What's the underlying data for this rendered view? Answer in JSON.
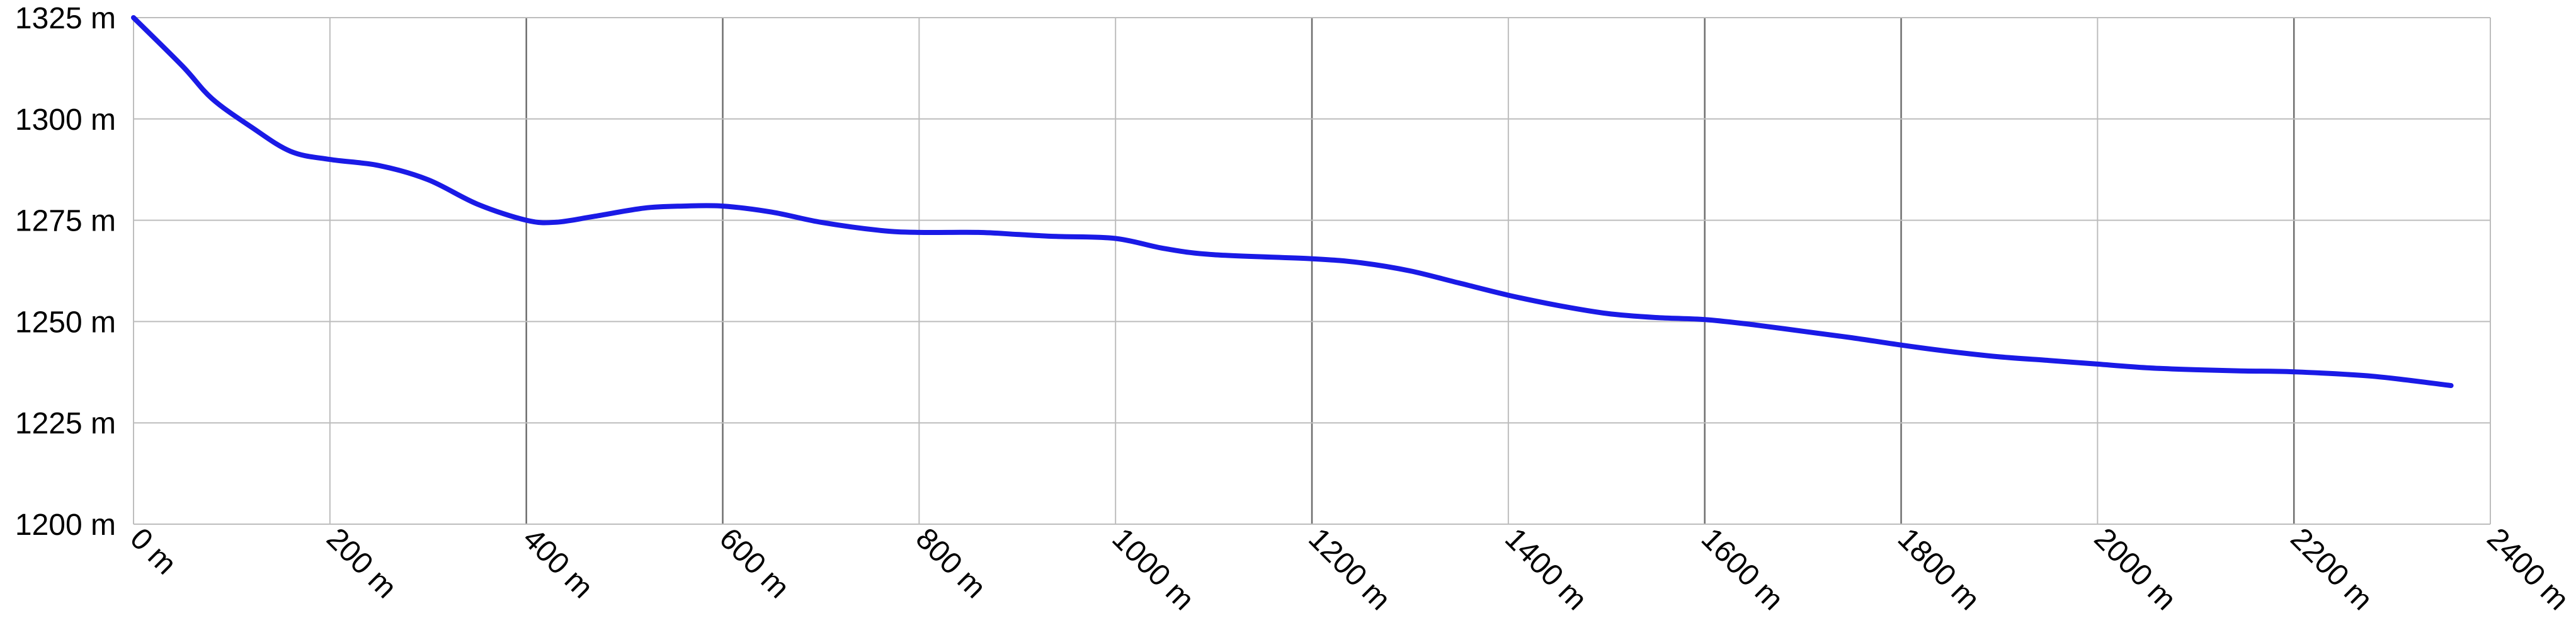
{
  "chart_data": {
    "type": "line",
    "title": "",
    "xlabel": "",
    "ylabel": "",
    "xlim": [
      0,
      2400
    ],
    "ylim": [
      1200,
      1325
    ],
    "x_ticks": [
      0,
      200,
      400,
      600,
      800,
      1000,
      1200,
      1400,
      1600,
      1800,
      2000,
      2200,
      2400
    ],
    "x_tick_labels": [
      "0 m",
      "200 m",
      "400 m",
      "600 m",
      "800 m",
      "1000 m",
      "1200 m",
      "1400 m",
      "1600 m",
      "1800 m",
      "2000 m",
      "2200 m",
      "2400 m"
    ],
    "y_ticks": [
      1200,
      1225,
      1250,
      1275,
      1300,
      1325
    ],
    "y_tick_labels": [
      "1200 m",
      "1225 m",
      "1250 m",
      "1275 m",
      "1300 m",
      "1325 m"
    ],
    "dark_vertical_gridlines_at": [
      400,
      600,
      1200,
      1600,
      1800,
      2200
    ],
    "grid": true,
    "series": [
      {
        "color": "#1a1ae6",
        "x": [
          0,
          50,
          80,
          120,
          160,
          200,
          250,
          300,
          350,
          400,
          430,
          470,
          520,
          560,
          600,
          650,
          700,
          760,
          800,
          860,
          900,
          940,
          1000,
          1050,
          1100,
          1200,
          1250,
          1300,
          1350,
          1400,
          1450,
          1500,
          1550,
          1600,
          1650,
          1700,
          1750,
          1800,
          1850,
          1900,
          1950,
          2000,
          2050,
          2100,
          2150,
          2200,
          2280,
          2360
        ],
        "y": [
          1325,
          1313,
          1305,
          1298,
          1292,
          1290,
          1288.5,
          1285,
          1279,
          1275,
          1274.5,
          1276,
          1278,
          1278.5,
          1278.5,
          1277,
          1274.5,
          1272.5,
          1272,
          1272,
          1271.5,
          1271,
          1270.5,
          1268,
          1266.5,
          1265.5,
          1264.5,
          1262.5,
          1259.5,
          1256.5,
          1254,
          1252,
          1251,
          1250.5,
          1249.2,
          1247.6,
          1246,
          1244.2,
          1242.6,
          1241.3,
          1240.4,
          1239.5,
          1238.6,
          1238.1,
          1237.8,
          1237.6,
          1236.5,
          1234.2
        ]
      }
    ]
  }
}
